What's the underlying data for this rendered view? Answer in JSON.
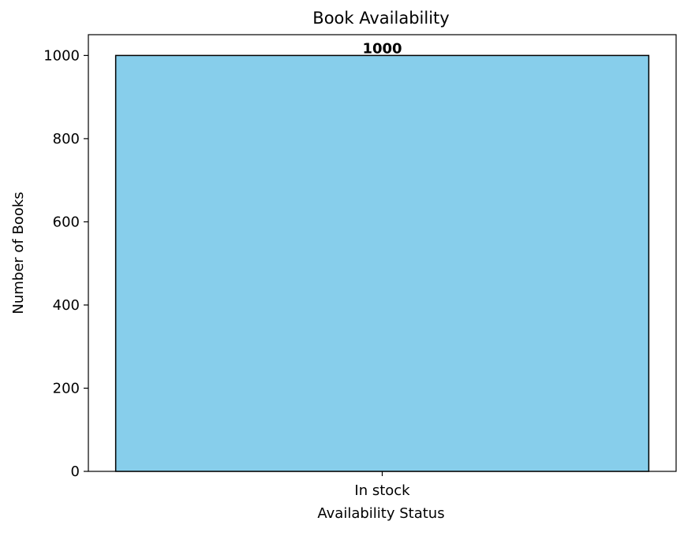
{
  "chart_data": {
    "type": "bar",
    "title": "Book Availability",
    "xlabel": "Availability Status",
    "ylabel": "Number of Books",
    "categories": [
      "In stock"
    ],
    "values": [
      1000
    ],
    "data_labels": [
      "1000"
    ],
    "ylim": [
      0,
      1050
    ],
    "yticks": [
      0,
      200,
      400,
      600,
      800,
      1000
    ],
    "grid": false,
    "legend": "none",
    "bar_color": "#87CEEB",
    "bar_edge_color": "#000000"
  }
}
